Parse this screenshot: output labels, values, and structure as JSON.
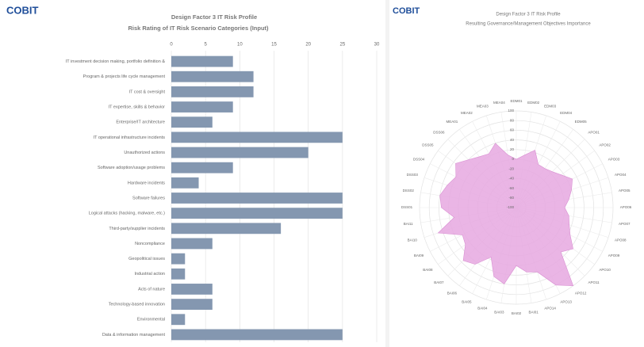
{
  "chart_data": [
    {
      "type": "bar",
      "orientation": "horizontal",
      "logo": "COBIT",
      "title": "Design Factor 3 IT Risk Profile",
      "subtitle": "Risk Rating of IT Risk Scenario Categories (Input)",
      "categories": [
        "IT investment decision making, portfolio definition &",
        "Program & projects life cycle management",
        "IT cost & oversight",
        "IT expertise, skills & behavior",
        "Enterprise/IT architecture",
        "IT operational infrastructure incidents",
        "Unauthorized actions",
        "Software adoption/usage problems",
        "Hardware incidents",
        "Software failures",
        "Logical attacks (hacking, malware, etc.)",
        "Third-party/supplier incidents",
        "Noncompliance",
        "Geopolitical issues",
        "Industrial action",
        "Acts of nature",
        "Technology-based innovation",
        "Environmental",
        "Data & information management"
      ],
      "values": [
        9,
        12,
        12,
        9,
        6,
        25,
        20,
        9,
        4,
        25,
        25,
        16,
        6,
        2,
        2,
        6,
        6,
        2,
        25
      ],
      "color": "#8497b0",
      "xlim": [
        0,
        30
      ],
      "xticks": [
        0,
        5,
        10,
        15,
        20,
        25,
        30
      ],
      "grid": true
    },
    {
      "type": "radar",
      "logo": "COBIT",
      "title": "Design Factor 3 IT Risk Profile",
      "subtitle": "Resulting Governance/Management Objectives Importance",
      "categories": [
        "EDM01",
        "EDM02",
        "EDM03",
        "EDM04",
        "EDM05",
        "APO01",
        "APO02",
        "APO03",
        "APO04",
        "APO05",
        "APO06",
        "APO07",
        "APO08",
        "APO09",
        "APO10",
        "APO11",
        "APO12",
        "APO13",
        "APO14",
        "BAI01",
        "BAI02",
        "BAI03",
        "BAI04",
        "BAI05",
        "BAI06",
        "BAI07",
        "BAI08",
        "BAI09",
        "BAI10",
        "BAI11",
        "DSS01",
        "DSS02",
        "DSS03",
        "DSS04",
        "DSS05",
        "DSS06",
        "MEA01",
        "MEA02",
        "MEA03",
        "MEA04"
      ],
      "values": [
        0,
        10,
        25,
        0,
        0,
        5,
        15,
        30,
        20,
        10,
        0,
        10,
        15,
        25,
        45,
        30,
        100,
        80,
        40,
        35,
        20,
        60,
        50,
        15,
        45,
        55,
        30,
        25,
        70,
        30,
        55,
        60,
        50,
        40,
        55,
        40,
        30,
        25,
        40,
        10
      ],
      "color": "#e6a8e0",
      "rlim": [
        -100,
        100
      ],
      "rticks": [
        -100,
        -80,
        -60,
        -40,
        -20,
        0,
        20,
        40,
        60,
        80,
        100
      ],
      "negative_tick_color": "#e0302f"
    }
  ]
}
